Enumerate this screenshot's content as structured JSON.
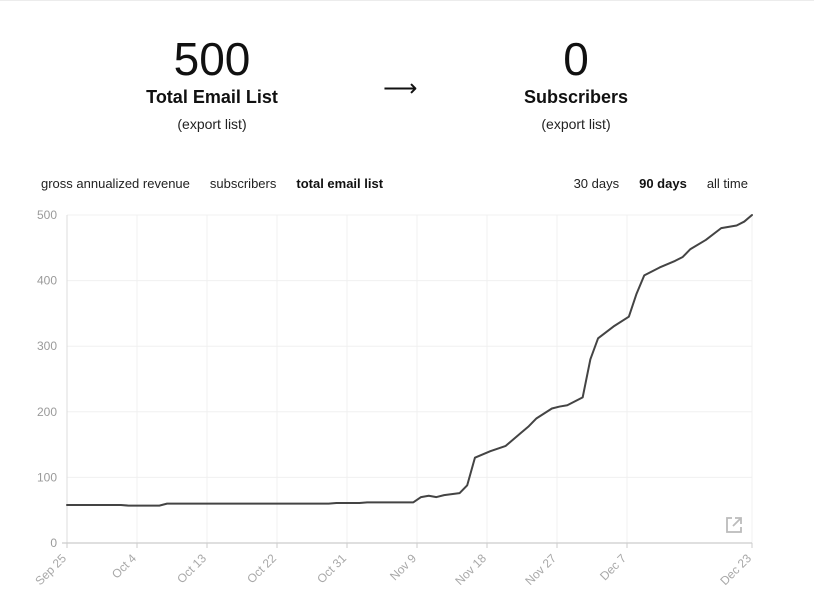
{
  "stats": {
    "left": {
      "number": "500",
      "label": "Total Email List",
      "link": "(export list)"
    },
    "arrow": "⟶",
    "right": {
      "number": "0",
      "label": "Subscribers",
      "link": "(export list)"
    }
  },
  "metric_tabs": [
    {
      "label": "gross annualized revenue",
      "active": false
    },
    {
      "label": "subscribers",
      "active": false
    },
    {
      "label": "total email list",
      "active": true
    }
  ],
  "range_tabs": [
    {
      "label": "30 days",
      "active": false
    },
    {
      "label": "90 days",
      "active": true
    },
    {
      "label": "all time",
      "active": false
    }
  ],
  "icons": {
    "external_link": "external-link-icon"
  },
  "chart_data": {
    "type": "line",
    "x_tick_labels": [
      "Sep 25",
      "Oct 4",
      "Oct 13",
      "Oct 22",
      "Oct 31",
      "Nov 9",
      "Nov 18",
      "Nov 27",
      "Dec 7",
      "Dec 23"
    ],
    "x_start": "2023-09-25",
    "x_end": "2023-12-23",
    "y_ticks": [
      0,
      100,
      200,
      300,
      400,
      500
    ],
    "ylim": [
      0,
      500
    ],
    "grid": true,
    "line_color": "#444444",
    "series": [
      {
        "points": [
          [
            "2023-09-25",
            58
          ],
          [
            "2023-10-02",
            58
          ],
          [
            "2023-10-03",
            57
          ],
          [
            "2023-10-07",
            57
          ],
          [
            "2023-10-08",
            60
          ],
          [
            "2023-10-15",
            60
          ],
          [
            "2023-10-22",
            60
          ],
          [
            "2023-10-29",
            60
          ],
          [
            "2023-10-30",
            61
          ],
          [
            "2023-11-02",
            61
          ],
          [
            "2023-11-03",
            62
          ],
          [
            "2023-11-09",
            62
          ],
          [
            "2023-11-10",
            70
          ],
          [
            "2023-11-11",
            72
          ],
          [
            "2023-11-12",
            70
          ],
          [
            "2023-11-13",
            73
          ],
          [
            "2023-11-15",
            76
          ],
          [
            "2023-11-16",
            88
          ],
          [
            "2023-11-17",
            130
          ],
          [
            "2023-11-19",
            140
          ],
          [
            "2023-11-21",
            148
          ],
          [
            "2023-11-23",
            168
          ],
          [
            "2023-11-24",
            178
          ],
          [
            "2023-11-25",
            190
          ],
          [
            "2023-11-27",
            205
          ],
          [
            "2023-11-28",
            208
          ],
          [
            "2023-11-29",
            210
          ],
          [
            "2023-12-01",
            222
          ],
          [
            "2023-12-02",
            280
          ],
          [
            "2023-12-03",
            312
          ],
          [
            "2023-12-05",
            330
          ],
          [
            "2023-12-07",
            345
          ],
          [
            "2023-12-08",
            380
          ],
          [
            "2023-12-09",
            408
          ],
          [
            "2023-12-11",
            420
          ],
          [
            "2023-12-13",
            430
          ],
          [
            "2023-12-14",
            436
          ],
          [
            "2023-12-15",
            448
          ],
          [
            "2023-12-17",
            462
          ],
          [
            "2023-12-19",
            480
          ],
          [
            "2023-12-21",
            484
          ],
          [
            "2023-12-22",
            490
          ],
          [
            "2023-12-23",
            500
          ]
        ]
      }
    ]
  }
}
